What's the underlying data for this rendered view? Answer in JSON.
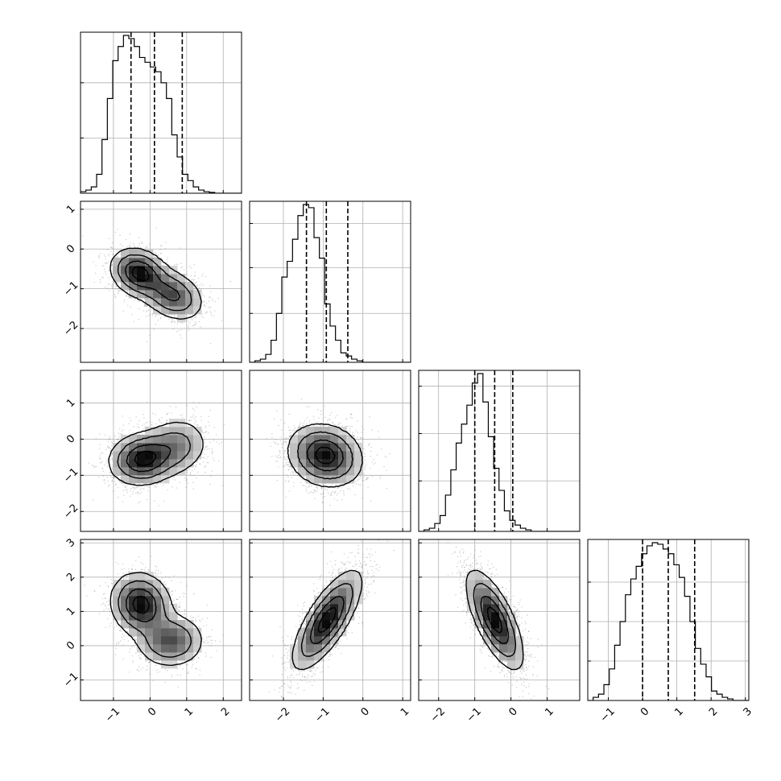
{
  "chart_data": {
    "type": "corner",
    "colors": {
      "line": "#000000",
      "grid": "#b0b0b0",
      "scatter": "#6e6e6e",
      "background": "#ffffff"
    },
    "parameters": [
      {
        "index": 0,
        "range": [
          -1.9,
          2.5
        ],
        "ticks": [
          -1,
          0,
          1,
          2
        ],
        "tick_labels": [
          "−1",
          "0",
          "1",
          "2"
        ],
        "quantiles": [
          -0.52,
          0.12,
          0.88
        ],
        "hist_start": -1.9,
        "hist_step": 0.1467,
        "hist": [
          0.01,
          0.02,
          0.04,
          0.12,
          0.34,
          0.6,
          0.84,
          0.93,
          1.0,
          0.98,
          0.93,
          0.86,
          0.83,
          0.8,
          0.77,
          0.7,
          0.6,
          0.37,
          0.23,
          0.12,
          0.08,
          0.04,
          0.02,
          0.01,
          0.005,
          0.0,
          0.0,
          0.0,
          0.0,
          0.0
        ],
        "hist_yticks": [
          0.35,
          0.7
        ]
      },
      {
        "index": 1,
        "range": [
          -2.85,
          1.2
        ],
        "ticks": [
          -2,
          -1,
          0,
          1
        ],
        "tick_labels": [
          "−2",
          "−1",
          "0",
          "1"
        ],
        "quantiles": [
          -1.42,
          -0.92,
          -0.38
        ],
        "hist_start": -2.85,
        "hist_step": 0.135,
        "hist": [
          0.0,
          0.01,
          0.02,
          0.05,
          0.14,
          0.31,
          0.54,
          0.64,
          0.78,
          0.93,
          1.0,
          0.98,
          0.79,
          0.66,
          0.37,
          0.23,
          0.14,
          0.06,
          0.04,
          0.02,
          0.01,
          0.0,
          0.0,
          0.0,
          0.0,
          0.0,
          0.0,
          0.0,
          0.0,
          0.0
        ],
        "hist_yticks": [
          0.31,
          0.6,
          0.88
        ]
      },
      {
        "index": 2,
        "range": [
          -2.55,
          1.9
        ],
        "ticks": [
          -2,
          -1,
          0,
          1
        ],
        "tick_labels": [
          "−2",
          "−1",
          "0",
          "1"
        ],
        "quantiles": [
          -1.0,
          -0.45,
          0.05
        ],
        "hist_start": -2.55,
        "hist_step": 0.148,
        "hist": [
          0.0,
          0.01,
          0.02,
          0.05,
          0.1,
          0.23,
          0.39,
          0.56,
          0.68,
          0.8,
          0.94,
          1.0,
          0.82,
          0.6,
          0.4,
          0.26,
          0.13,
          0.07,
          0.04,
          0.02,
          0.01,
          0.0,
          0.0,
          0.0,
          0.0,
          0.0,
          0.0,
          0.0,
          0.0,
          0.0
        ],
        "hist_yticks": [
          0.32,
          0.62,
          0.92
        ]
      },
      {
        "index": 3,
        "range": [
          -1.6,
          3.1
        ],
        "ticks": [
          -1,
          0,
          1,
          2,
          3
        ],
        "tick_labels": [
          "−1",
          "0",
          "1",
          "2",
          "3"
        ],
        "quantiles": [
          0.0,
          0.75,
          1.52
        ],
        "hist_start": -1.6,
        "hist_step": 0.157,
        "hist": [
          0.0,
          0.02,
          0.04,
          0.1,
          0.2,
          0.35,
          0.5,
          0.67,
          0.77,
          0.85,
          0.93,
          0.98,
          1.0,
          0.99,
          0.96,
          0.93,
          0.86,
          0.78,
          0.66,
          0.5,
          0.33,
          0.23,
          0.15,
          0.06,
          0.04,
          0.02,
          0.01,
          0.0,
          0.0,
          0.0
        ],
        "hist_yticks": [
          0.25,
          0.5,
          0.75
        ]
      }
    ],
    "pairs": [
      {
        "x": 0,
        "y": 1,
        "components": [
          {
            "mx": -0.3,
            "my": -0.6,
            "sx": 0.38,
            "sy": 0.3,
            "rho": -0.2,
            "w": 0.55
          },
          {
            "mx": 0.6,
            "my": -1.15,
            "sx": 0.42,
            "sy": 0.32,
            "rho": -0.3,
            "w": 0.45
          }
        ]
      },
      {
        "x": 0,
        "y": 2,
        "components": [
          {
            "mx": -0.2,
            "my": -0.55,
            "sx": 0.45,
            "sy": 0.35,
            "rho": 0.1,
            "w": 0.65
          },
          {
            "mx": 0.7,
            "my": -0.2,
            "sx": 0.45,
            "sy": 0.4,
            "rho": 0.1,
            "w": 0.35
          }
        ]
      },
      {
        "x": 1,
        "y": 2,
        "components": [
          {
            "mx": -0.95,
            "my": -0.45,
            "sx": 0.45,
            "sy": 0.42,
            "rho": -0.15,
            "w": 1.0
          }
        ]
      },
      {
        "x": 0,
        "y": 3,
        "components": [
          {
            "mx": -0.25,
            "my": 1.2,
            "sx": 0.4,
            "sy": 0.45,
            "rho": -0.1,
            "w": 0.6
          },
          {
            "mx": 0.55,
            "my": 0.15,
            "sx": 0.45,
            "sy": 0.38,
            "rho": 0.0,
            "w": 0.4
          }
        ]
      },
      {
        "x": 1,
        "y": 3,
        "components": [
          {
            "mx": -0.9,
            "my": 0.75,
            "sx": 0.42,
            "sy": 0.7,
            "rho": 0.75,
            "w": 1.0
          }
        ]
      },
      {
        "x": 2,
        "y": 3,
        "components": [
          {
            "mx": -0.45,
            "my": 0.75,
            "sx": 0.38,
            "sy": 0.7,
            "rho": -0.7,
            "w": 1.0
          }
        ]
      }
    ],
    "grid": true,
    "contour_levels": [
      0.12,
      0.32,
      0.62,
      0.88
    ]
  }
}
